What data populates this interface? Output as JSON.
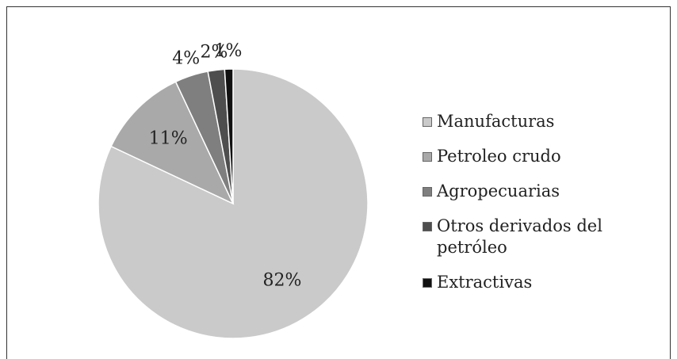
{
  "chart_data": {
    "type": "pie",
    "categories": [
      "Manufacturas",
      "Petroleo crudo",
      "Agropecuarias",
      "Otros derivados del petróleo",
      "Extractivas"
    ],
    "values": [
      82,
      11,
      4,
      2,
      1
    ],
    "value_labels": [
      "82%",
      "11%",
      "4%",
      "2%",
      "1%"
    ],
    "colors": [
      "#cacaca",
      "#a9a9a9",
      "#7f7f7f",
      "#4e4e4e",
      "#111111"
    ],
    "legend": "right"
  }
}
